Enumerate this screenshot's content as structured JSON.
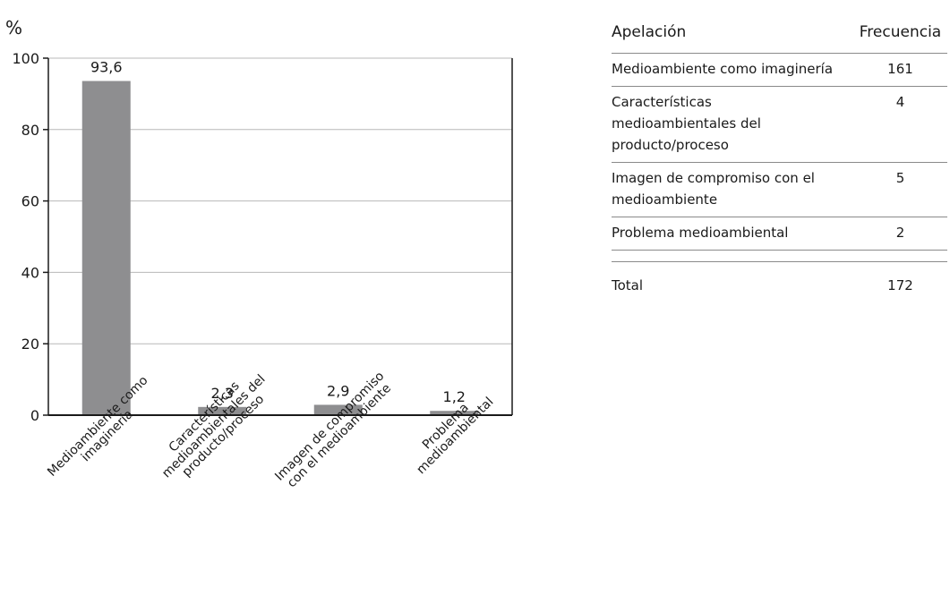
{
  "chart_data": {
    "type": "bar",
    "ylabel": "%",
    "ylim": [
      0,
      100
    ],
    "yticks": [
      0,
      20,
      40,
      60,
      80,
      100
    ],
    "grid": true,
    "categories": [
      [
        "Medioambiente como",
        "imaginería"
      ],
      [
        "Características",
        "medioambientales del",
        "producto/proceso"
      ],
      [
        "Imagen de compromiso",
        "con el medioambiente"
      ],
      [
        "Problema",
        "medioambiental"
      ]
    ],
    "values": [
      93.6,
      2.3,
      2.9,
      1.2
    ],
    "value_labels": [
      "93,6",
      "2,3",
      "2,9",
      "1,2"
    ],
    "colors": {
      "bar": "#8e8e90",
      "grid": "#b8b8b8",
      "axis": "#1a1a1a"
    }
  },
  "table": {
    "headers": [
      "Apelación",
      "Frecuencia"
    ],
    "rows": [
      {
        "label": "Medioambiente como imaginería",
        "value": "161"
      },
      {
        "label": "Características medioambientales del producto/proceso",
        "value": "4"
      },
      {
        "label": "Imagen de compromiso con el medioambiente",
        "value": "5"
      },
      {
        "label": "Problema medioambiental",
        "value": "2"
      }
    ],
    "total": {
      "label": "Total",
      "value": "172"
    }
  }
}
